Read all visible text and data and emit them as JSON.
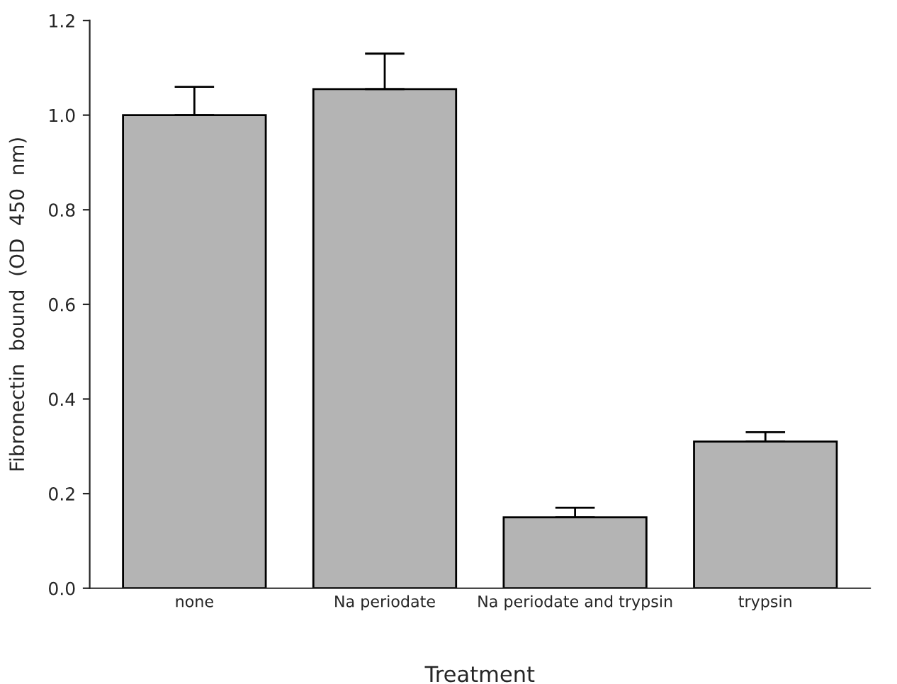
{
  "chart_data": {
    "type": "bar",
    "categories": [
      "none",
      "Na periodate",
      "Na periodate and trypsin",
      "trypsin"
    ],
    "values": [
      1.0,
      1.055,
      0.15,
      0.31
    ],
    "errors": [
      [
        1.0,
        1.06
      ],
      [
        1.055,
        1.13
      ],
      [
        0.15,
        0.17
      ],
      [
        0.31,
        0.33
      ]
    ],
    "color": "#b4b4b4",
    "xlabel": "Treatment",
    "ylabel": "Fibronectin  bound  (OD  450  nm)",
    "ylim": [
      0,
      1.2
    ],
    "yticks": [
      {
        "value": 0,
        "label": "0.0"
      },
      0.2,
      0.4,
      0.6,
      0.8,
      {
        "value": 1,
        "label": "1.0"
      },
      1.2
    ],
    "grid": false,
    "legend": false
  }
}
